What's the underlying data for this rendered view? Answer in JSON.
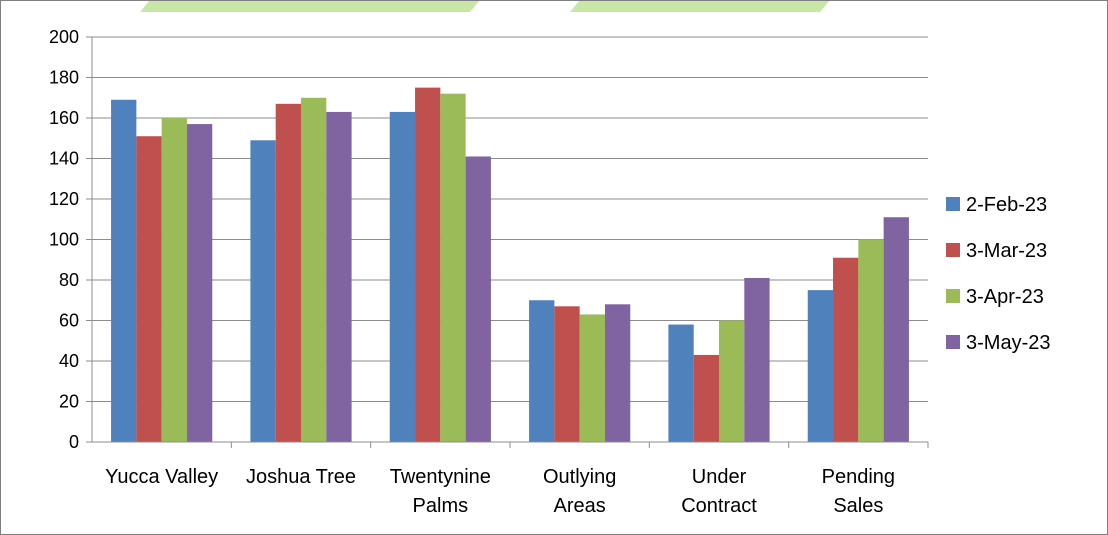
{
  "chart_data": {
    "type": "bar",
    "title": "",
    "xlabel": "",
    "ylabel": "",
    "categories": [
      [
        "Yucca Valley"
      ],
      [
        "Joshua Tree"
      ],
      [
        "Twentynine",
        "Palms"
      ],
      [
        "Outlying",
        "Areas"
      ],
      [
        "Under",
        "Contract"
      ],
      [
        "Pending",
        "Sales"
      ]
    ],
    "series": [
      {
        "name": "2-Feb-23",
        "color": "#4F81BD",
        "values": [
          169,
          149,
          163,
          70,
          58,
          75
        ]
      },
      {
        "name": "3-Mar-23",
        "color": "#C0504D",
        "values": [
          151,
          167,
          175,
          67,
          43,
          91
        ]
      },
      {
        "name": "3-Apr-23",
        "color": "#9BBB59",
        "values": [
          160,
          170,
          172,
          63,
          60,
          100
        ]
      },
      {
        "name": "3-May-23",
        "color": "#8064A2",
        "values": [
          157,
          163,
          141,
          68,
          81,
          111
        ]
      }
    ],
    "ylim": [
      0,
      200
    ],
    "yticks": [
      0,
      20,
      40,
      60,
      80,
      100,
      120,
      140,
      160,
      180,
      200
    ],
    "grid": true,
    "legend_position": "right",
    "colors": {
      "grid": "#8C8C8C",
      "axis": "#8C8C8C",
      "text": "#000000",
      "frame": "#7F7F7F",
      "top_band": "#92D050"
    }
  }
}
